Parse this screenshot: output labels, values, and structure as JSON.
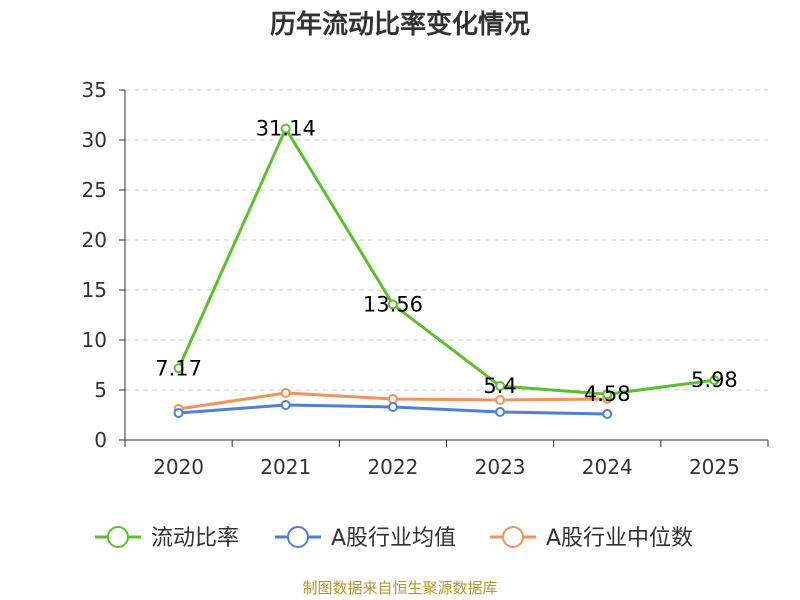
{
  "chart_data": {
    "type": "line",
    "title": "历年流动比率变化情况",
    "categories": [
      "2020",
      "2021",
      "2022",
      "2023",
      "2024",
      "2025"
    ],
    "ylim": [
      0,
      35
    ],
    "yticks": [
      0,
      5,
      10,
      15,
      20,
      25,
      30,
      35
    ],
    "grid": true,
    "legend_position": "bottom",
    "series": [
      {
        "name": "流动比率",
        "color": "#5dbf2c",
        "values": [
          7.17,
          31.14,
          13.56,
          5.4,
          4.58,
          5.98
        ],
        "labels": [
          "7.17",
          "31.14",
          "13.56",
          "5.4",
          "4.58",
          "5.98"
        ]
      },
      {
        "name": "A股行业均值",
        "color": "#4f7fdb",
        "values": [
          2.7,
          3.5,
          3.3,
          2.8,
          2.6,
          null
        ]
      },
      {
        "name": "A股行业中位数",
        "color": "#f2935d",
        "values": [
          3.1,
          4.7,
          4.1,
          4.0,
          4.1,
          null
        ]
      }
    ]
  },
  "footer": {
    "text": "制图数据来自恒生聚源数据库",
    "color": "#b8962e"
  }
}
